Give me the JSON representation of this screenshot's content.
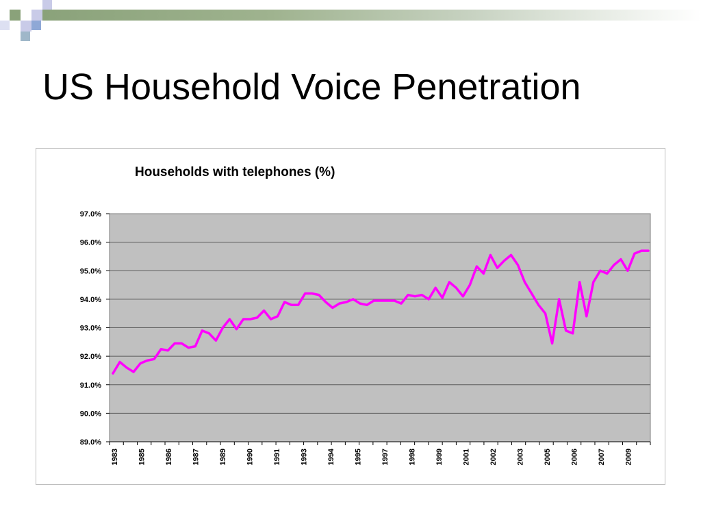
{
  "slide": {
    "title": "US Household Voice Penetration"
  },
  "colors": {
    "plot_background": "#c0c0c0",
    "series_line": "#ff00ff",
    "gridline": "#5a5a5a",
    "banner_green": "#8aa27a",
    "banner_blue": "#8fa8d6",
    "banner_lavender": "#c9cbe8"
  },
  "chart_data": {
    "type": "line",
    "title": "Households with telephones (%)",
    "ylim": [
      89.0,
      97.0
    ],
    "y_ticks": [
      "89.0%",
      "90.0%",
      "91.0%",
      "92.0%",
      "93.0%",
      "94.0%",
      "95.0%",
      "96.0%",
      "97.0%"
    ],
    "x_tick_labels": [
      "1983",
      "1985",
      "1986",
      "1987",
      "1989",
      "1990",
      "1991",
      "1993",
      "1994",
      "1995",
      "1997",
      "1998",
      "1999",
      "2001",
      "2002",
      "2003",
      "2005",
      "2006",
      "2007",
      "2009"
    ],
    "grid": true,
    "legend": "none",
    "series": [
      {
        "values": [
          91.4,
          91.8,
          91.6,
          91.45,
          91.75,
          91.85,
          91.9,
          92.25,
          92.2,
          92.45,
          92.45,
          92.3,
          92.35,
          92.9,
          92.8,
          92.55,
          93.0,
          93.3,
          92.95,
          93.3,
          93.3,
          93.35,
          93.6,
          93.3,
          93.4,
          93.9,
          93.8,
          93.8,
          94.2,
          94.2,
          94.15,
          93.9,
          93.7,
          93.85,
          93.9,
          94.0,
          93.85,
          93.8,
          93.95,
          93.95,
          93.95,
          93.95,
          93.85,
          94.15,
          94.1,
          94.15,
          94.0,
          94.4,
          94.05,
          94.6,
          94.4,
          94.1,
          94.5,
          95.15,
          94.9,
          95.55,
          95.1,
          95.35,
          95.55,
          95.2,
          94.6,
          94.2,
          93.8,
          93.5,
          92.45,
          94.0,
          92.9,
          92.8,
          94.6,
          93.4,
          94.6,
          95.0,
          94.9,
          95.2,
          95.4,
          95.0,
          95.6,
          95.7,
          95.7
        ]
      }
    ]
  }
}
